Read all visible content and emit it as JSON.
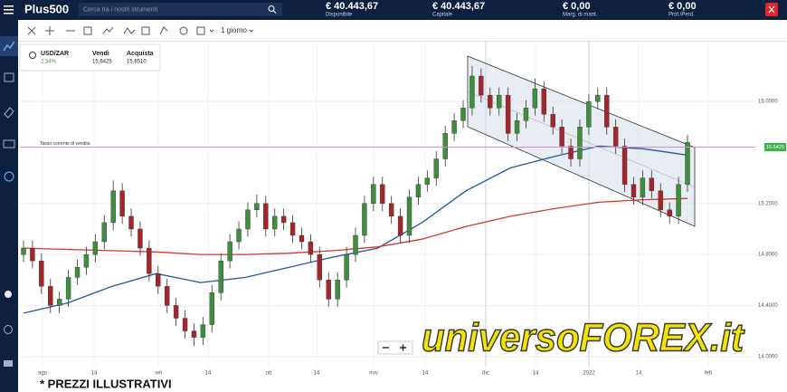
{
  "header": {
    "logo": "Plus500",
    "search_placeholder": "Cerca tra i nostri strumenti",
    "account": [
      {
        "value": "€ 40.443,67",
        "label": "Disponibile"
      },
      {
        "value": "€ 40.443,67",
        "label": "Capitale"
      },
      {
        "value": "€ 0,00",
        "label": "Marg. di mant."
      },
      {
        "value": "€ 0,00",
        "label": "Prof./Perd."
      }
    ]
  },
  "toolbar": {
    "interval": "1 giorno"
  },
  "instrument": {
    "symbol": "USD/ZAR",
    "change": "2,34%",
    "sell_label": "Vendi",
    "sell": "15,6425",
    "buy_label": "Acquista",
    "buy": "15,6510"
  },
  "chart_data": {
    "type": "candlestick",
    "candles": [
      [
        14.8,
        14.91,
        14.74,
        14.85
      ],
      [
        14.85,
        14.91,
        14.69,
        14.75
      ],
      [
        14.75,
        14.81,
        14.49,
        14.55
      ],
      [
        14.55,
        14.61,
        14.34,
        14.4
      ],
      [
        14.4,
        14.51,
        14.34,
        14.45
      ],
      [
        14.45,
        14.68,
        14.39,
        14.62
      ],
      [
        14.62,
        14.76,
        14.56,
        14.7
      ],
      [
        14.7,
        14.86,
        14.64,
        14.8
      ],
      [
        14.8,
        14.96,
        14.74,
        14.9
      ],
      [
        14.9,
        15.11,
        14.84,
        15.05
      ],
      [
        15.05,
        15.38,
        14.99,
        15.3
      ],
      [
        15.3,
        15.36,
        15.04,
        15.1
      ],
      [
        15.1,
        15.16,
        14.94,
        15.0
      ],
      [
        15.0,
        15.06,
        14.79,
        14.85
      ],
      [
        14.85,
        14.91,
        14.59,
        14.65
      ],
      [
        14.65,
        14.71,
        14.49,
        14.55
      ],
      [
        14.55,
        14.61,
        14.34,
        14.4
      ],
      [
        14.4,
        14.46,
        14.24,
        14.3
      ],
      [
        14.3,
        14.36,
        14.14,
        14.2
      ],
      [
        14.2,
        14.26,
        14.08,
        14.15
      ],
      [
        14.15,
        14.31,
        14.09,
        14.25
      ],
      [
        14.25,
        14.56,
        14.19,
        14.5
      ],
      [
        14.5,
        14.81,
        14.44,
        14.75
      ],
      [
        14.75,
        14.96,
        14.69,
        14.9
      ],
      [
        14.9,
        15.06,
        14.84,
        15.0
      ],
      [
        15.0,
        15.21,
        14.94,
        15.15
      ],
      [
        15.15,
        15.27,
        15.09,
        15.2
      ],
      [
        15.2,
        15.26,
        14.94,
        15.0
      ],
      [
        15.0,
        15.16,
        14.94,
        15.1
      ],
      [
        15.1,
        15.16,
        14.99,
        15.05
      ],
      [
        15.05,
        15.11,
        14.89,
        14.95
      ],
      [
        14.95,
        15.01,
        14.84,
        14.9
      ],
      [
        14.9,
        14.96,
        14.74,
        14.8
      ],
      [
        14.8,
        14.86,
        14.54,
        14.6
      ],
      [
        14.6,
        14.66,
        14.39,
        14.45
      ],
      [
        14.45,
        14.66,
        14.39,
        14.6
      ],
      [
        14.6,
        14.86,
        14.54,
        14.8
      ],
      [
        14.8,
        15.01,
        14.74,
        14.95
      ],
      [
        14.95,
        15.26,
        14.89,
        15.2
      ],
      [
        15.2,
        15.41,
        15.14,
        15.35
      ],
      [
        15.35,
        15.41,
        15.14,
        15.2
      ],
      [
        15.2,
        15.26,
        15.04,
        15.1
      ],
      [
        15.1,
        15.16,
        14.89,
        14.95
      ],
      [
        14.95,
        15.31,
        14.89,
        15.25
      ],
      [
        15.25,
        15.41,
        15.19,
        15.35
      ],
      [
        15.35,
        15.46,
        15.29,
        15.4
      ],
      [
        15.4,
        15.61,
        15.34,
        15.55
      ],
      [
        15.55,
        15.81,
        15.49,
        15.75
      ],
      [
        15.75,
        15.91,
        15.69,
        15.85
      ],
      [
        15.85,
        16.01,
        15.79,
        15.95
      ],
      [
        15.95,
        16.28,
        15.89,
        16.2
      ],
      [
        16.2,
        16.26,
        15.99,
        16.05
      ],
      [
        16.05,
        16.11,
        15.89,
        15.95
      ],
      [
        15.95,
        16.11,
        15.89,
        16.05
      ],
      [
        16.05,
        16.11,
        15.69,
        15.75
      ],
      [
        15.75,
        15.91,
        15.69,
        15.85
      ],
      [
        15.85,
        16.01,
        15.79,
        15.95
      ],
      [
        15.95,
        16.18,
        15.89,
        16.1
      ],
      [
        16.1,
        16.16,
        15.84,
        15.9
      ],
      [
        15.9,
        15.96,
        15.74,
        15.8
      ],
      [
        15.8,
        15.86,
        15.59,
        15.65
      ],
      [
        15.65,
        15.71,
        15.49,
        15.55
      ],
      [
        15.55,
        15.86,
        15.49,
        15.8
      ],
      [
        15.8,
        16.06,
        15.74,
        16.0
      ],
      [
        16.0,
        16.11,
        15.94,
        16.05
      ],
      [
        16.05,
        16.11,
        15.74,
        15.8
      ],
      [
        15.8,
        15.86,
        15.59,
        15.65
      ],
      [
        15.65,
        15.71,
        15.29,
        15.35
      ],
      [
        15.35,
        15.41,
        15.19,
        15.25
      ],
      [
        15.25,
        15.46,
        15.19,
        15.4
      ],
      [
        15.4,
        15.46,
        15.24,
        15.3
      ],
      [
        15.3,
        15.36,
        15.09,
        15.15
      ],
      [
        15.15,
        15.21,
        15.04,
        15.1
      ],
      [
        15.1,
        15.41,
        15.04,
        15.35
      ],
      [
        15.35,
        15.74,
        15.29,
        15.68
      ]
    ],
    "up_color": "#3e8e3e",
    "down_color": "#a5262a",
    "series": [
      {
        "color": "#1f5b9e",
        "values": [
          14.34,
          14.42,
          14.55,
          14.65,
          14.58,
          14.62,
          14.7,
          14.78,
          14.85,
          15.05,
          15.3,
          15.48,
          15.57,
          15.65,
          15.63,
          15.58
        ]
      },
      {
        "color": "#d23a2e",
        "values": [
          14.85,
          14.84,
          14.83,
          14.82,
          14.8,
          14.8,
          14.81,
          14.83,
          14.86,
          14.92,
          15.02,
          15.1,
          15.16,
          15.21,
          15.23,
          15.24
        ]
      }
    ],
    "ylim": [
      13.92,
      16.47
    ],
    "yticks": [
      {
        "value": 14.0,
        "label": "14.0000"
      },
      {
        "value": 14.4,
        "label": "14.4000"
      },
      {
        "value": 14.8,
        "label": "14.8000"
      },
      {
        "value": 15.2,
        "label": "15.2000"
      },
      {
        "value": 16.0,
        "label": "16.0000"
      }
    ],
    "x_labels": [
      "ago",
      "14",
      "set",
      "14",
      "ott",
      "14",
      "nov",
      "14",
      "dic",
      "14",
      "2022",
      "14",
      "feb"
    ],
    "current_price": 15.6425,
    "current_price_label": "Tasso corrente di vendita",
    "grid": true
  },
  "watermark": "universoFOREX.it",
  "footnote": "* PREZZI ILLUSTRATIVI"
}
